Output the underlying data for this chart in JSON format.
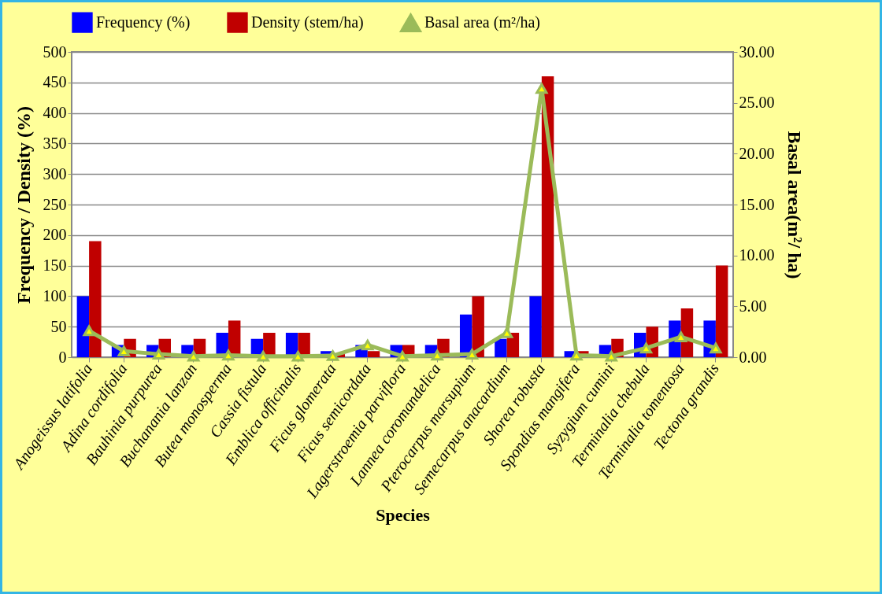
{
  "chart_data": {
    "type": "bar",
    "xlabel": "Species",
    "ylabel": "Frequency / Density (%)",
    "y2label": "Basal area(m²/ ha)",
    "categories": [
      "Anogeissus latifolia",
      "Adina cordifolia",
      "Bauhinia purpurea",
      "Buchanania lanzan",
      "Butea monosperma",
      "Cassia fistula",
      "Emblica officinalis",
      "Ficus glomerata",
      "Ficus semicordata",
      "Lagerstroemia parviflora",
      "Lannea coromandelica",
      "Pterocarpus marsupium",
      "Semecarpus anacardium",
      "Shorea robusta",
      "Spondias mangifera",
      "Syzygium cumini",
      "Terminalia chebula",
      "Terminalia tomentosa",
      "Tectona grandis"
    ],
    "series": [
      {
        "name": "Frequency (%)",
        "color": "#0000ff",
        "values": [
          100,
          20,
          20,
          20,
          40,
          30,
          40,
          10,
          20,
          20,
          20,
          70,
          30,
          100,
          10,
          20,
          40,
          60,
          60
        ]
      },
      {
        "name": "Density (stem/ha)",
        "color": "#c00000",
        "values": [
          190,
          30,
          30,
          30,
          60,
          40,
          40,
          5,
          10,
          20,
          30,
          100,
          40,
          460,
          10,
          30,
          50,
          80,
          150
        ]
      },
      {
        "name": "Basal area (m²/ha)",
        "type": "line",
        "axis": "y2",
        "color": "#9bbb59",
        "values": [
          2.6,
          0.6,
          0.3,
          0.1,
          0.2,
          0.1,
          0.1,
          0.15,
          1.2,
          0.1,
          0.2,
          0.3,
          2.4,
          26.4,
          0.2,
          0.1,
          0.9,
          2.0,
          0.9
        ]
      }
    ],
    "ylim": [
      0,
      500
    ],
    "yticks": [
      0,
      50,
      100,
      150,
      200,
      250,
      300,
      350,
      400,
      450,
      500
    ],
    "y2lim": [
      0,
      30
    ],
    "y2ticks": [
      {
        "value": 0,
        "label": "0.00"
      },
      {
        "value": 5,
        "label": "5.00"
      },
      {
        "value": 10,
        "label": "10.00"
      },
      {
        "value": 15,
        "label": "15.00"
      },
      {
        "value": 20,
        "label": "20.00"
      },
      {
        "value": 25,
        "label": "25.00"
      },
      {
        "value": 30,
        "label": "30.00"
      }
    ],
    "grid": "y",
    "legend": "top",
    "marker": "triangle"
  }
}
